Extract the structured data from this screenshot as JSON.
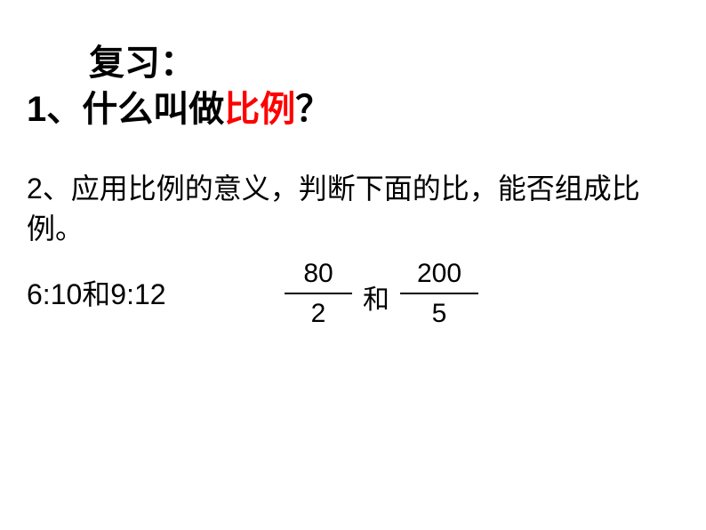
{
  "heading": "复习：",
  "question1": {
    "number": "1",
    "separator": "、",
    "prefix": "什么叫做",
    "highlight": "比例",
    "suffix": "？"
  },
  "question2": {
    "number": "2",
    "text": "、应用比例的意义，判断下面的比，能否组成比例。"
  },
  "ratio1": {
    "left": "6:10",
    "and": "和",
    "right": "9:12"
  },
  "fractions": {
    "frac1": {
      "numerator": "80",
      "denominator": "2"
    },
    "and": "和",
    "frac2": {
      "numerator": "200",
      "denominator": "5"
    }
  },
  "colors": {
    "highlight": "#ff0000",
    "text": "#000000",
    "background": "#ffffff"
  },
  "fonts": {
    "heading_size": 40,
    "body_size": 32,
    "fraction_size": 30
  }
}
